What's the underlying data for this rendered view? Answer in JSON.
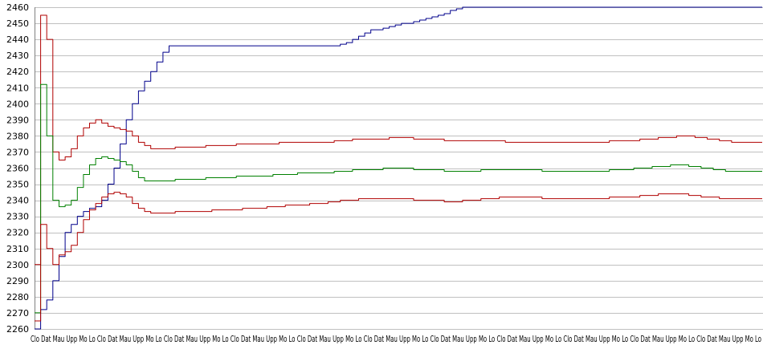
{
  "chart_data": {
    "type": "line",
    "title": "",
    "xlabel": "",
    "ylabel": "",
    "ylim": [
      2260,
      2460
    ],
    "ytick_step": 10,
    "grid": true,
    "legend": "none",
    "n_points": 120,
    "x_tick_labels_visible_text": "Clo Dat Mau Upp Mo Lo Clo Dat Mau Upp Mo Lo Clo Dat Mau Upp Mo Lo Clo Dat Mau Upp Mo Lo Clo Dat Mau Upp Mo Lo Clo Dat Mau Upp Mo Lo Clo Dat Mau Upp Mo Lo Clo Dat Mau Upp Mo Lo Clo Dat Mau Upp Mo Lo Clo Dat Mau Upp Mo Lo Clo Dat Mau Upp Mo Lo",
    "x_tick_label_cycle": [
      "Clo",
      "Dat",
      "Mau",
      "Upp",
      "Mo",
      "Lo"
    ],
    "series": [
      {
        "color": "#00008b",
        "values": [
          2260,
          2272,
          2278,
          2290,
          2305,
          2320,
          2325,
          2330,
          2333,
          2335,
          2336,
          2340,
          2350,
          2360,
          2375,
          2390,
          2400,
          2408,
          2414,
          2420,
          2426,
          2432,
          2436,
          2436,
          2436,
          2436,
          2436,
          2436,
          2436,
          2436,
          2436,
          2436,
          2436,
          2436,
          2436,
          2436,
          2436,
          2436,
          2436,
          2436,
          2436,
          2436,
          2436,
          2436,
          2436,
          2436,
          2436,
          2436,
          2436,
          2436,
          2437,
          2438,
          2440,
          2442,
          2444,
          2446,
          2446,
          2447,
          2448,
          2449,
          2450,
          2450,
          2451,
          2452,
          2453,
          2454,
          2455,
          2456,
          2458,
          2459,
          2460,
          2460,
          2460,
          2460,
          2460,
          2460,
          2460,
          2460,
          2460,
          2460,
          2460,
          2460,
          2460,
          2460,
          2460,
          2460,
          2460,
          2460,
          2460,
          2460,
          2460,
          2460,
          2460,
          2460,
          2460,
          2460,
          2460,
          2460,
          2460,
          2460,
          2460,
          2460,
          2460,
          2460,
          2460,
          2460,
          2460,
          2460,
          2460,
          2460,
          2460,
          2460,
          2460,
          2460,
          2460,
          2460,
          2460,
          2460,
          2460,
          2460
        ]
      },
      {
        "color": "#b00000",
        "values": [
          2300,
          2455,
          2440,
          2370,
          2365,
          2367,
          2372,
          2380,
          2385,
          2388,
          2390,
          2388,
          2386,
          2385,
          2384,
          2383,
          2380,
          2376,
          2374,
          2372,
          2372,
          2372,
          2372,
          2373,
          2373,
          2373,
          2373,
          2373,
          2374,
          2374,
          2374,
          2374,
          2374,
          2375,
          2375,
          2375,
          2375,
          2375,
          2375,
          2375,
          2376,
          2376,
          2376,
          2376,
          2376,
          2376,
          2376,
          2376,
          2376,
          2377,
          2377,
          2377,
          2378,
          2378,
          2378,
          2378,
          2378,
          2378,
          2379,
          2379,
          2379,
          2379,
          2378,
          2378,
          2378,
          2378,
          2378,
          2377,
          2377,
          2377,
          2377,
          2377,
          2377,
          2377,
          2377,
          2377,
          2377,
          2376,
          2376,
          2376,
          2376,
          2376,
          2376,
          2376,
          2376,
          2376,
          2376,
          2376,
          2376,
          2376,
          2376,
          2376,
          2376,
          2376,
          2377,
          2377,
          2377,
          2377,
          2377,
          2378,
          2378,
          2378,
          2379,
          2379,
          2379,
          2380,
          2380,
          2380,
          2379,
          2379,
          2378,
          2378,
          2377,
          2377,
          2376,
          2376,
          2376,
          2376,
          2376,
          2376
        ]
      },
      {
        "color": "#008000",
        "values": [
          2270,
          2412,
          2380,
          2340,
          2336,
          2337,
          2340,
          2348,
          2356,
          2362,
          2366,
          2367,
          2366,
          2365,
          2364,
          2362,
          2358,
          2354,
          2352,
          2352,
          2352,
          2352,
          2352,
          2353,
          2353,
          2353,
          2353,
          2353,
          2354,
          2354,
          2354,
          2354,
          2354,
          2355,
          2355,
          2355,
          2355,
          2355,
          2355,
          2356,
          2356,
          2356,
          2356,
          2357,
          2357,
          2357,
          2357,
          2357,
          2357,
          2358,
          2358,
          2358,
          2359,
          2359,
          2359,
          2359,
          2359,
          2360,
          2360,
          2360,
          2360,
          2360,
          2359,
          2359,
          2359,
          2359,
          2359,
          2358,
          2358,
          2358,
          2358,
          2358,
          2358,
          2359,
          2359,
          2359,
          2359,
          2359,
          2359,
          2359,
          2359,
          2359,
          2359,
          2358,
          2358,
          2358,
          2358,
          2358,
          2358,
          2358,
          2358,
          2358,
          2358,
          2358,
          2359,
          2359,
          2359,
          2359,
          2360,
          2360,
          2360,
          2361,
          2361,
          2361,
          2362,
          2362,
          2362,
          2361,
          2361,
          2360,
          2360,
          2359,
          2359,
          2358,
          2358,
          2358,
          2358,
          2358,
          2358,
          2358
        ]
      },
      {
        "color": "#b00000",
        "values": [
          2265,
          2325,
          2310,
          2300,
          2306,
          2308,
          2312,
          2320,
          2328,
          2334,
          2338,
          2342,
          2344,
          2345,
          2344,
          2342,
          2338,
          2335,
          2333,
          2332,
          2332,
          2332,
          2332,
          2333,
          2333,
          2333,
          2333,
          2333,
          2333,
          2334,
          2334,
          2334,
          2334,
          2334,
          2335,
          2335,
          2335,
          2335,
          2336,
          2336,
          2336,
          2337,
          2337,
          2337,
          2337,
          2338,
          2338,
          2338,
          2339,
          2339,
          2340,
          2340,
          2340,
          2341,
          2341,
          2341,
          2341,
          2341,
          2341,
          2341,
          2341,
          2341,
          2340,
          2340,
          2340,
          2340,
          2340,
          2339,
          2339,
          2339,
          2340,
          2340,
          2340,
          2341,
          2341,
          2341,
          2342,
          2342,
          2342,
          2342,
          2342,
          2342,
          2342,
          2341,
          2341,
          2341,
          2341,
          2341,
          2341,
          2341,
          2341,
          2341,
          2341,
          2341,
          2342,
          2342,
          2342,
          2342,
          2342,
          2343,
          2343,
          2343,
          2344,
          2344,
          2344,
          2344,
          2344,
          2343,
          2343,
          2342,
          2342,
          2342,
          2341,
          2341,
          2341,
          2341,
          2341,
          2341,
          2341,
          2341
        ]
      }
    ]
  }
}
